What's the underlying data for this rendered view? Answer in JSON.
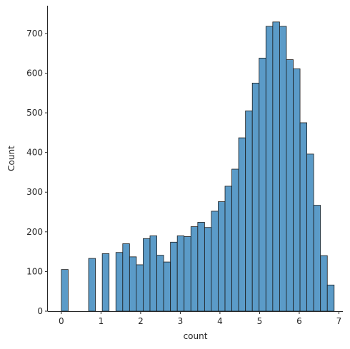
{
  "chart_data": {
    "type": "bar",
    "style": "histogram",
    "title": "",
    "xlabel": "count",
    "ylabel": "Count",
    "xlim": [
      -0.34,
      7.1
    ],
    "ylim": [
      0,
      770
    ],
    "xticks": [
      0,
      1,
      2,
      3,
      4,
      5,
      6,
      7
    ],
    "yticks": [
      0,
      100,
      200,
      300,
      400,
      500,
      600,
      700
    ],
    "grid": false,
    "legend": "none",
    "bar_color": "#5b9bc8",
    "edge_color": "#1a1a1a",
    "bin_width": 0.172,
    "bins": [
      {
        "x0": 0.0,
        "count": 105
      },
      {
        "x0": 0.172,
        "count": 0
      },
      {
        "x0": 0.344,
        "count": 0
      },
      {
        "x0": 0.516,
        "count": 0
      },
      {
        "x0": 0.688,
        "count": 133
      },
      {
        "x0": 0.86,
        "count": 0
      },
      {
        "x0": 1.032,
        "count": 145
      },
      {
        "x0": 1.204,
        "count": 0
      },
      {
        "x0": 1.376,
        "count": 148
      },
      {
        "x0": 1.548,
        "count": 170
      },
      {
        "x0": 1.72,
        "count": 137
      },
      {
        "x0": 1.892,
        "count": 117
      },
      {
        "x0": 2.064,
        "count": 183
      },
      {
        "x0": 2.236,
        "count": 190
      },
      {
        "x0": 2.408,
        "count": 141
      },
      {
        "x0": 2.58,
        "count": 124
      },
      {
        "x0": 2.752,
        "count": 174
      },
      {
        "x0": 2.924,
        "count": 190
      },
      {
        "x0": 3.096,
        "count": 188
      },
      {
        "x0": 3.268,
        "count": 213
      },
      {
        "x0": 3.44,
        "count": 224
      },
      {
        "x0": 3.612,
        "count": 211
      },
      {
        "x0": 3.784,
        "count": 252
      },
      {
        "x0": 3.956,
        "count": 276
      },
      {
        "x0": 4.128,
        "count": 315
      },
      {
        "x0": 4.3,
        "count": 358
      },
      {
        "x0": 4.472,
        "count": 437
      },
      {
        "x0": 4.644,
        "count": 505
      },
      {
        "x0": 4.816,
        "count": 575
      },
      {
        "x0": 4.988,
        "count": 638
      },
      {
        "x0": 5.16,
        "count": 718
      },
      {
        "x0": 5.332,
        "count": 729
      },
      {
        "x0": 5.504,
        "count": 718
      },
      {
        "x0": 5.676,
        "count": 634
      },
      {
        "x0": 5.848,
        "count": 611
      },
      {
        "x0": 6.02,
        "count": 475
      },
      {
        "x0": 6.192,
        "count": 396
      },
      {
        "x0": 6.364,
        "count": 267
      },
      {
        "x0": 6.536,
        "count": 140
      },
      {
        "x0": 6.708,
        "count": 66
      }
    ]
  }
}
